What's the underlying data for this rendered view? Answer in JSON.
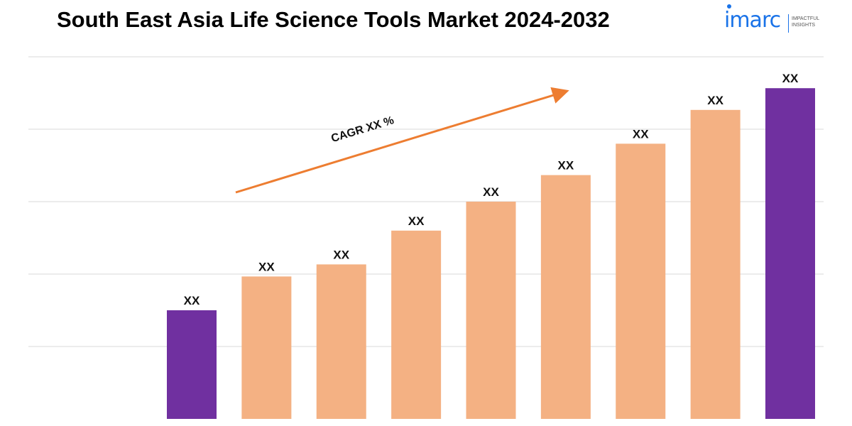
{
  "header": {
    "title": "South East Asia Life Science Tools Market 2024-2032"
  },
  "logo": {
    "word": "imarc",
    "tagline": "IMPACTFUL\nINSIGHTS",
    "color": "#1a73e8"
  },
  "chart_data": {
    "type": "bar",
    "title": "South East Asia Life Science Tools Market 2024-2032",
    "xlabel": "",
    "ylabel": "",
    "categories": [
      "",
      "",
      "",
      "",
      "",
      "",
      "",
      "",
      ""
    ],
    "values": [
      4.5,
      5.9,
      6.4,
      7.8,
      9.0,
      10.1,
      11.4,
      12.8,
      13.7
    ],
    "data_labels": [
      "XX",
      "XX",
      "XX",
      "XX",
      "XX",
      "XX",
      "XX",
      "XX",
      "XX"
    ],
    "bar_colors": [
      "#7030a0",
      "#f4b183",
      "#f4b183",
      "#f4b183",
      "#f4b183",
      "#f4b183",
      "#f4b183",
      "#f4b183",
      "#7030a0"
    ],
    "ylim": [
      0,
      15
    ],
    "grid": true,
    "gridline_color": "#d9d9d9",
    "annotation": {
      "text": "CAGR XX %",
      "arrow_color": "#ed7d31"
    }
  }
}
